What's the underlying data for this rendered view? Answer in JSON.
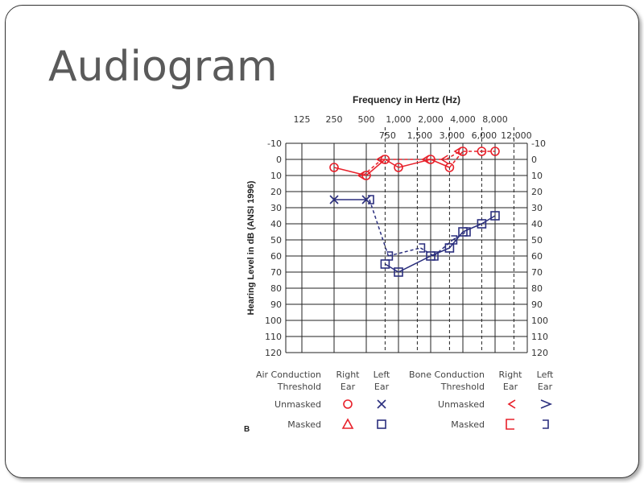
{
  "slide": {
    "title": "Audiogram"
  },
  "chart_data": {
    "type": "scatter",
    "title": "Frequency in Hertz (Hz)",
    "ylabel": "Hearing Level in dB (ANSI 1996)",
    "panel_label": "B",
    "x_top_ticks": [
      "125",
      "250",
      "500",
      "1,000",
      "2,000",
      "4,000",
      "8,000"
    ],
    "x_mid_ticks": [
      "750",
      "1,500",
      "3,000",
      "6,000",
      "12,000"
    ],
    "y_ticks": [
      -10,
      0,
      10,
      20,
      30,
      40,
      50,
      60,
      70,
      80,
      90,
      100,
      110,
      120
    ],
    "ylim": [
      -10,
      120
    ],
    "y_inverted": true,
    "grid": true,
    "colors": {
      "right": "#e8202a",
      "left": "#2b2f7e"
    },
    "series": [
      {
        "name": "Right Ear Air Conduction Unmasked",
        "marker": "circle",
        "color": "#e8202a",
        "line": "solid-dashed",
        "x": [
          250,
          500,
          750,
          1000,
          2000,
          3000,
          4000,
          6000,
          8000
        ],
        "y": [
          5,
          10,
          0,
          5,
          0,
          5,
          -5,
          -5,
          -5
        ]
      },
      {
        "name": "Right Ear Bone Conduction Unmasked",
        "marker": "lt",
        "color": "#e8202a",
        "line": "dashed",
        "x": [
          500,
          750,
          2000,
          3000,
          4000
        ],
        "y": [
          10,
          0,
          0,
          0,
          -5
        ]
      },
      {
        "name": "Left Ear Air Conduction Unmasked",
        "marker": "x",
        "color": "#2b2f7e",
        "line": "solid",
        "x": [
          250,
          500
        ],
        "y": [
          25,
          25
        ]
      },
      {
        "name": "Left Ear Air Conduction Masked",
        "marker": "square",
        "color": "#2b2f7e",
        "line": "solid",
        "x": [
          750,
          1000,
          2000,
          3000,
          4000,
          6000,
          8000
        ],
        "y": [
          65,
          70,
          60,
          55,
          45,
          40,
          35
        ]
      },
      {
        "name": "Left Ear Bone Conduction Masked",
        "marker": "rbracket",
        "color": "#2b2f7e",
        "line": "dashed",
        "x": [
          500,
          750,
          1500,
          2000,
          3000,
          4000
        ],
        "y": [
          25,
          60,
          55,
          60,
          50,
          45
        ]
      }
    ],
    "legend": {
      "air_header": [
        "Air Conduction",
        "Threshold"
      ],
      "bone_header": [
        "Bone Conduction",
        "Threshold"
      ],
      "right_header": [
        "Right",
        "Ear"
      ],
      "left_header": [
        "Left",
        "Ear"
      ],
      "unmasked": "Unmasked",
      "masked": "Masked"
    }
  }
}
